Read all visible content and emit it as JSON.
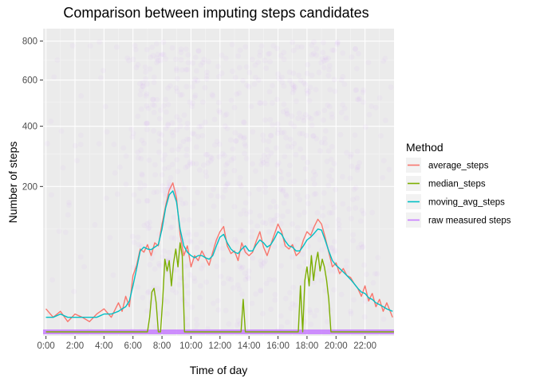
{
  "chart_data": {
    "type": "line",
    "title": "Comparison between imputing steps candidates",
    "xlabel": "Time of day",
    "ylabel": "Number of steps",
    "x_ticks": [
      "0:00",
      "2:00",
      "4:00",
      "6:00",
      "8:00",
      "10:00",
      "12:00",
      "14:00",
      "16:00",
      "18:00",
      "20:00",
      "22:00"
    ],
    "x_tick_values": [
      0,
      2,
      4,
      6,
      8,
      10,
      12,
      14,
      16,
      18,
      20,
      22
    ],
    "xlim": [
      -0.2,
      24
    ],
    "y_ticks": [
      200,
      400,
      600,
      800
    ],
    "y_scale": "sqrt",
    "ylim": [
      0,
      870
    ],
    "grid": true,
    "legend_title": "Method",
    "legend_position": "right",
    "colors": {
      "average_steps": "#F8766D",
      "median_steps": "#7CAE00",
      "moving_avg_steps": "#00BFC4",
      "raw measured steps": "#C77CFF"
    },
    "series": [
      {
        "name": "average_steps",
        "x": [
          0,
          0.5,
          1,
          1.5,
          2,
          2.5,
          3,
          3.5,
          4,
          4.5,
          5,
          5.25,
          5.5,
          5.75,
          6,
          6.25,
          6.5,
          6.75,
          7,
          7.25,
          7.5,
          7.75,
          8,
          8.25,
          8.5,
          8.75,
          9,
          9.25,
          9.5,
          9.75,
          10,
          10.25,
          10.5,
          10.75,
          11,
          11.25,
          11.5,
          11.75,
          12,
          12.25,
          12.5,
          12.75,
          13,
          13.25,
          13.5,
          13.75,
          14,
          14.25,
          14.5,
          14.75,
          15,
          15.25,
          15.5,
          15.75,
          16,
          16.25,
          16.5,
          16.75,
          17,
          17.25,
          17.5,
          17.75,
          18,
          18.25,
          18.5,
          18.75,
          19,
          19.25,
          19.5,
          19.75,
          20,
          20.25,
          20.5,
          20.75,
          21,
          21.25,
          21.5,
          21.75,
          22,
          22.25,
          22.5,
          22.75,
          23,
          23.25,
          23.5,
          23.9
        ],
        "values": [
          5,
          2,
          4,
          1,
          3,
          2,
          1,
          3,
          5,
          2,
          8,
          4,
          12,
          6,
          30,
          42,
          65,
          60,
          72,
          55,
          75,
          70,
          110,
          150,
          190,
          210,
          170,
          90,
          55,
          70,
          40,
          55,
          48,
          62,
          52,
          42,
          60,
          80,
          95,
          105,
          70,
          58,
          62,
          48,
          75,
          60,
          55,
          60,
          78,
          95,
          68,
          55,
          72,
          90,
          110,
          95,
          70,
          65,
          72,
          55,
          60,
          80,
          95,
          88,
          105,
          120,
          110,
          85,
          60,
          40,
          45,
          32,
          38,
          30,
          28,
          22,
          18,
          12,
          20,
          9,
          14,
          6,
          10,
          4,
          8,
          2
        ]
      },
      {
        "name": "median_steps",
        "x": [
          0,
          6.8,
          7,
          7.15,
          7.3,
          7.45,
          7.6,
          7.75,
          7.9,
          8.05,
          8.2,
          8.35,
          8.5,
          8.65,
          8.8,
          8.95,
          9.1,
          9.25,
          9.4,
          9.55,
          9.7,
          9.85,
          10,
          10.15,
          10.3,
          10.45,
          10.6,
          10.75,
          10.9,
          11.05,
          11.2,
          11.35,
          11.5,
          11.65,
          11.8,
          11.95,
          12.1,
          12.25,
          12.4,
          12.55,
          12.7,
          12.85,
          13,
          13.15,
          13.3,
          13.45,
          13.6,
          13.75,
          13.9,
          17.4,
          17.55,
          17.7,
          17.85,
          18,
          18.15,
          18.3,
          18.45,
          18.6,
          18.75,
          18.9,
          19.05,
          19.2,
          19.35,
          19.5,
          19.65,
          19.8,
          24
        ],
        "values": [
          0,
          0,
          0,
          2,
          15,
          18,
          8,
          0,
          0,
          10,
          50,
          35,
          48,
          20,
          45,
          65,
          40,
          75,
          55,
          0,
          0,
          0,
          0,
          0,
          0,
          0,
          0,
          0,
          0,
          0,
          0,
          0,
          0,
          0,
          0,
          0,
          0,
          0,
          0,
          0,
          0,
          0,
          0,
          0,
          0,
          0,
          10,
          0,
          0,
          0,
          20,
          0,
          25,
          40,
          20,
          55,
          25,
          45,
          60,
          35,
          50,
          40,
          25,
          10,
          0,
          0,
          0
        ]
      },
      {
        "name": "moving_avg_steps",
        "x": [
          0,
          0.5,
          1,
          1.5,
          2,
          2.5,
          3,
          3.5,
          4,
          4.5,
          5,
          5.25,
          5.5,
          5.75,
          6,
          6.25,
          6.5,
          6.75,
          7,
          7.25,
          7.5,
          7.75,
          8,
          8.25,
          8.5,
          8.75,
          9,
          9.25,
          9.5,
          9.75,
          10,
          10.25,
          10.5,
          10.75,
          11,
          11.25,
          11.5,
          11.75,
          12,
          12.25,
          12.5,
          12.75,
          13,
          13.25,
          13.5,
          13.75,
          14,
          14.25,
          14.5,
          14.75,
          15,
          15.25,
          15.5,
          15.75,
          16,
          16.25,
          16.5,
          16.75,
          17,
          17.25,
          17.5,
          17.75,
          18,
          18.25,
          18.5,
          18.75,
          19,
          19.25,
          19.5,
          19.75,
          20,
          20.25,
          20.5,
          20.75,
          21,
          21.25,
          21.5,
          21.75,
          22,
          22.25,
          22.5,
          22.75,
          23,
          23.25,
          23.5,
          23.9
        ],
        "values": [
          2,
          2,
          3,
          2,
          2,
          2,
          2,
          2,
          3,
          3,
          4,
          5,
          6,
          9,
          20,
          38,
          62,
          68,
          65,
          64,
          68,
          72,
          100,
          145,
          178,
          188,
          160,
          100,
          70,
          60,
          55,
          52,
          55,
          55,
          52,
          50,
          55,
          70,
          85,
          90,
          75,
          65,
          60,
          58,
          65,
          70,
          62,
          62,
          72,
          80,
          75,
          68,
          72,
          82,
          95,
          90,
          78,
          70,
          68,
          62,
          62,
          70,
          80,
          85,
          92,
          100,
          98,
          80,
          62,
          48,
          42,
          38,
          34,
          30,
          26,
          22,
          18,
          15,
          14,
          11,
          10,
          8,
          7,
          6,
          5,
          4
        ]
      },
      {
        "name": "raw measured steps",
        "type": "scatter",
        "note_values": "raw points spread across the day; most at 0, with scattered values up to ~800"
      }
    ]
  }
}
